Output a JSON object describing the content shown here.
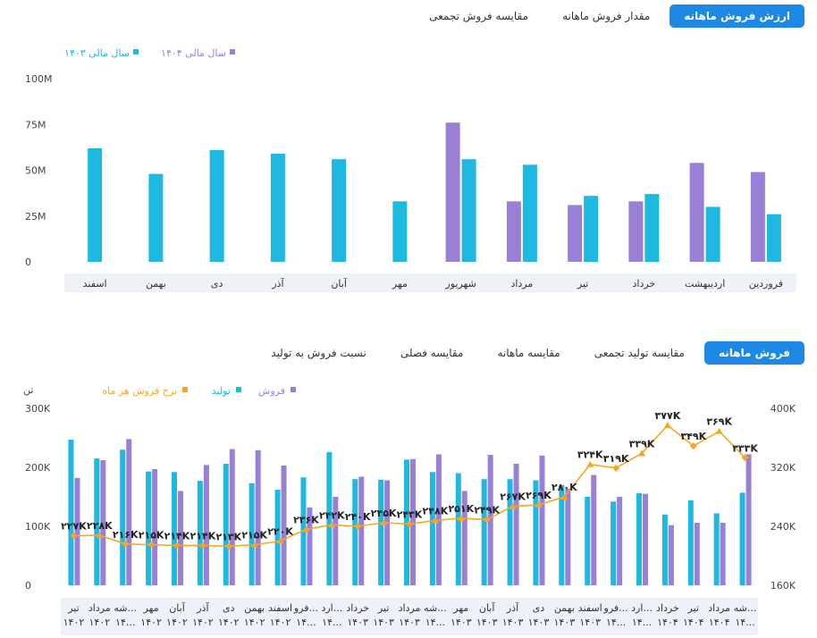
{
  "tabs_top": {
    "items": [
      "ارزش فروش ماهانه",
      "مقدار فروش ماهانه",
      "مقایسه فروش تجمعی"
    ],
    "active": 0
  },
  "tabs_bottom": {
    "items": [
      "فروش ماهانه",
      "مقایسه تولید تجمعی",
      "مقایسه ماهانه",
      "مقایسه فصلی",
      "نسبت فروش به تولید"
    ],
    "active": 0
  },
  "colors": {
    "cyan": "#1eb8e0",
    "purple": "#9a7fd6",
    "orange": "#f5a623",
    "band": "#eef1f7",
    "active_tab": "#1e88e5"
  },
  "chart_data": [
    {
      "type": "bar",
      "categories": [
        "فروردین",
        "اردیبهشت",
        "خرداد",
        "تیر",
        "مرداد",
        "شهریور",
        "مهر",
        "آبان",
        "آذر",
        "دی",
        "بهمن",
        "اسفند"
      ],
      "series": [
        {
          "name": "سال مالی ۱۴۰۳",
          "color": "#1eb8e0",
          "values": [
            26,
            30,
            37,
            36,
            53,
            56,
            33,
            56,
            59,
            61,
            48,
            62
          ]
        },
        {
          "name": "سال مالی ۱۴۰۴",
          "color": "#9a7fd6",
          "values": [
            49,
            54,
            33,
            31,
            33,
            76,
            null,
            null,
            null,
            null,
            null,
            null
          ]
        }
      ],
      "y_ticks": [
        "0",
        "25M",
        "50M",
        "75M",
        "100M"
      ],
      "ylim": [
        0,
        100
      ],
      "legend_position": "top-left"
    },
    {
      "type": "bar",
      "y_unit": "تن",
      "categories": [
        "تیر ۱۴۰۲",
        "مرداد ۱۴۰۲",
        "شه... ۱۴...",
        "مهر ۱۴۰۲",
        "آبان ۱۴۰۲",
        "آذر ۱۴۰۲",
        "دی ۱۴۰۲",
        "بهمن ۱۴۰۲",
        "اسفند ۱۴۰۲",
        "فرو... ۱۴...",
        "ارد... ۱۴...",
        "خرداد ۱۴۰۳",
        "تیر ۱۴۰۳",
        "مرداد ۱۴۰۳",
        "شه... ۱۴...",
        "مهر ۱۴۰۳",
        "آبان ۱۴۰۳",
        "آذر ۱۴۰۳",
        "دی ۱۴۰۳",
        "بهمن ۱۴۰۳",
        "اسفند ۱۴۰۳",
        "فرو... ۱۴...",
        "ارد... ۱۴...",
        "خرداد ۱۴۰۴",
        "تیر ۱۴۰۴",
        "مرداد ۱۴۰۴",
        "شه... ۱۴..."
      ],
      "series": [
        {
          "name": "تولید",
          "color": "#1eb8e0",
          "values": [
            247,
            215,
            230,
            193,
            192,
            177,
            206,
            173,
            162,
            183,
            226,
            180,
            179,
            213,
            192,
            190,
            180,
            180,
            178,
            170,
            150,
            142,
            156,
            120,
            144,
            122,
            157
          ]
        },
        {
          "name": "فروش",
          "color": "#9a7fd6",
          "values": [
            182,
            212,
            248,
            197,
            160,
            204,
            231,
            229,
            203,
            132,
            150,
            184,
            178,
            214,
            222,
            160,
            221,
            206,
            220,
            164,
            187,
            150,
            155,
            102,
            106,
            106,
            222
          ]
        },
        {
          "name": "نرخ فروش هر ماه",
          "color": "#f5a623",
          "type": "line",
          "axis": "right",
          "values": [
            227,
            228,
            216,
            215,
            214,
            214,
            213,
            215,
            220,
            236,
            242,
            240,
            245,
            243,
            248,
            251,
            249,
            267,
            269,
            280,
            324,
            319,
            339,
            377,
            349,
            369,
            333
          ],
          "labels": [
            "۲۲۷K",
            "۲۲۸K",
            "۲۱۶K",
            "۲۱۵K",
            "۲۱۴K",
            "۲۱۴K",
            "۲۱۳K",
            "۲۱۵K",
            "۲۲۰K",
            "۲۳۶K",
            "۲۴۲K",
            "۲۴۰K",
            "۲۴۵K",
            "۲۴۳K",
            "۲۴۸K",
            "۲۵۱K",
            "۲۴۹K",
            "۲۶۷K",
            "۲۶۹K",
            "۲۸۰K",
            "۳۲۴K",
            "۳۱۹K",
            "۳۳۹K",
            "۳۷۷K",
            "۳۴۹K",
            "۳۶۹K",
            "۳۳۳K"
          ]
        }
      ],
      "legend_order": [
        1,
        0,
        2
      ],
      "y_ticks": [
        "0",
        "100K",
        "200K",
        "300K"
      ],
      "ylim": [
        0,
        300
      ],
      "y2_ticks": [
        "160K",
        "240K",
        "320K",
        "400K"
      ],
      "y2lim": [
        160,
        400
      ],
      "legend_position": "top-left"
    }
  ]
}
